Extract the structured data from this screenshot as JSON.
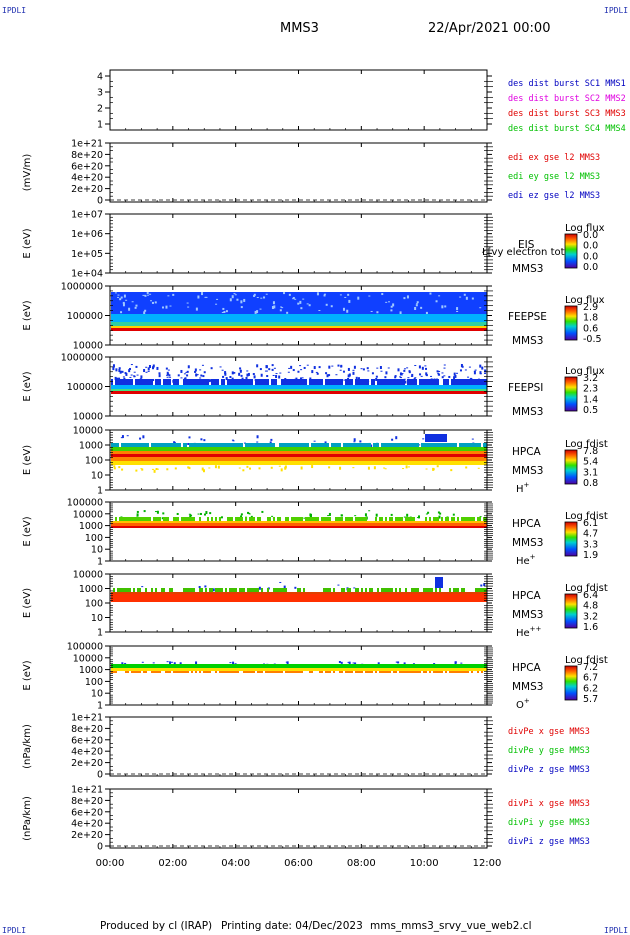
{
  "corners": {
    "top_left": "IPDLI",
    "top_right": "IPDLI",
    "bottom_left": "IPDLI",
    "bottom_right": "IPDLI"
  },
  "header": {
    "mission": "MMS3",
    "datetime": "22/Apr/2021 00:00"
  },
  "footer": {
    "produced_by": "Produced by cl (IRAP)",
    "printing_date": "Printing date: 04/Dec/2023",
    "file": "mms_mms3_srvy_vue_web2.cl"
  },
  "x_axis": {
    "ticks": [
      "00:00",
      "02:00",
      "04:00",
      "06:00",
      "08:00",
      "10:00",
      "12:00"
    ],
    "range": [
      0,
      12
    ]
  },
  "colors": {
    "red": "#e00000",
    "magenta": "#e000e0",
    "green": "#00c000",
    "blue": "#0000c0"
  },
  "chart_data": [
    {
      "type": "line",
      "ticks": [
        "4",
        "3",
        "2",
        "1"
      ],
      "legend": [
        {
          "text": "des dist burst SC1 MMS1",
          "color": "#0000c0"
        },
        {
          "text": "des dist burst SC2 MMS2",
          "color": "#e000e0"
        },
        {
          "text": "des dist burst SC3 MMS3",
          "color": "#e00000"
        },
        {
          "text": "des dist burst SC4 MMS4",
          "color": "#00c000"
        }
      ]
    },
    {
      "type": "line",
      "ylabel": "(mV/m)",
      "ticks": [
        "1e+21",
        "8e+20",
        "6e+20",
        "4e+20",
        "2e+20",
        "0"
      ],
      "legend": [
        {
          "text": "edi ex gse l2 MMS3",
          "color": "#e00000"
        },
        {
          "text": "edi ey gse l2 MMS3",
          "color": "#00c000"
        },
        {
          "text": "edi ez gse l2 MMS3",
          "color": "#0000c0"
        }
      ]
    },
    {
      "type": "heatmap",
      "ylabel": "E (eV)",
      "ticks": [
        "1e+07",
        "1e+06",
        "1e+05",
        "1e+04"
      ],
      "instrument": [
        "EIS",
        "MMS3"
      ],
      "overlay": "Ł[vy electron tot",
      "cbar_title": "Log flux",
      "cbar_ticks": [
        "0.0",
        "0.0",
        "0.0",
        "0.0"
      ]
    },
    {
      "type": "heatmap",
      "ylabel": "E (eV)",
      "ticks": [
        "1000000",
        "100000",
        "10000"
      ],
      "instrument": [
        "FEEPSE",
        "MMS3"
      ],
      "cbar_title": "Log flux",
      "cbar_ticks": [
        "2.9",
        "1.8",
        "0.6",
        "-0.5"
      ]
    },
    {
      "type": "heatmap",
      "ylabel": "E (eV)",
      "ticks": [
        "1000000",
        "100000",
        "10000"
      ],
      "instrument": [
        "FEEPSI",
        "MMS3"
      ],
      "cbar_title": "Log flux",
      "cbar_ticks": [
        "3.2",
        "2.3",
        "1.4",
        "0.5"
      ]
    },
    {
      "type": "heatmap",
      "ylabel": "E (eV)",
      "ticks": [
        "10000",
        "1000",
        "100",
        "10",
        "1"
      ],
      "instrument": [
        "HPCA",
        "MMS3"
      ],
      "species": "H",
      "species_sup": "+",
      "cbar_title": "Log fdist",
      "cbar_ticks": [
        "7.8",
        "5.4",
        "3.1",
        "0.8"
      ]
    },
    {
      "type": "heatmap",
      "ylabel": "E (eV)",
      "ticks": [
        "100000",
        "10000",
        "1000",
        "100",
        "10",
        "1"
      ],
      "instrument": [
        "HPCA",
        "MMS3"
      ],
      "species": "He",
      "species_sup": "+",
      "cbar_title": "Log fdist",
      "cbar_ticks": [
        "6.1",
        "4.7",
        "3.3",
        "1.9"
      ]
    },
    {
      "type": "heatmap",
      "ylabel": "E (eV)",
      "ticks": [
        "10000",
        "1000",
        "100",
        "10",
        "1"
      ],
      "instrument": [
        "HPCA",
        "MMS3"
      ],
      "species": "He",
      "species_sup": "++",
      "cbar_title": "Log fdist",
      "cbar_ticks": [
        "6.4",
        "4.8",
        "3.2",
        "1.6"
      ]
    },
    {
      "type": "heatmap",
      "ylabel": "E (eV)",
      "ticks": [
        "100000",
        "10000",
        "1000",
        "100",
        "10",
        "1"
      ],
      "instrument": [
        "HPCA",
        "MMS3"
      ],
      "species": "O",
      "species_sup": "+",
      "cbar_title": "Log fdist",
      "cbar_ticks": [
        "7.2",
        "6.7",
        "6.2",
        "5.7"
      ]
    },
    {
      "type": "line",
      "ylabel": "(nPa/km)",
      "ticks": [
        "1e+21",
        "8e+20",
        "6e+20",
        "4e+20",
        "2e+20",
        "0"
      ],
      "legend": [
        {
          "text": "divPe x gse MMS3",
          "color": "#e00000"
        },
        {
          "text": "divPe y gse MMS3",
          "color": "#00c000"
        },
        {
          "text": "divPe z gse MMS3",
          "color": "#0000c0"
        }
      ]
    },
    {
      "type": "line",
      "ylabel": "(nPa/km)",
      "ticks": [
        "1e+21",
        "8e+20",
        "6e+20",
        "4e+20",
        "2e+20",
        "0"
      ],
      "legend": [
        {
          "text": "divPi x gse MMS3",
          "color": "#e00000"
        },
        {
          "text": "divPi y gse MMS3",
          "color": "#00c000"
        },
        {
          "text": "divPi z gse MMS3",
          "color": "#0000c0"
        }
      ]
    }
  ]
}
